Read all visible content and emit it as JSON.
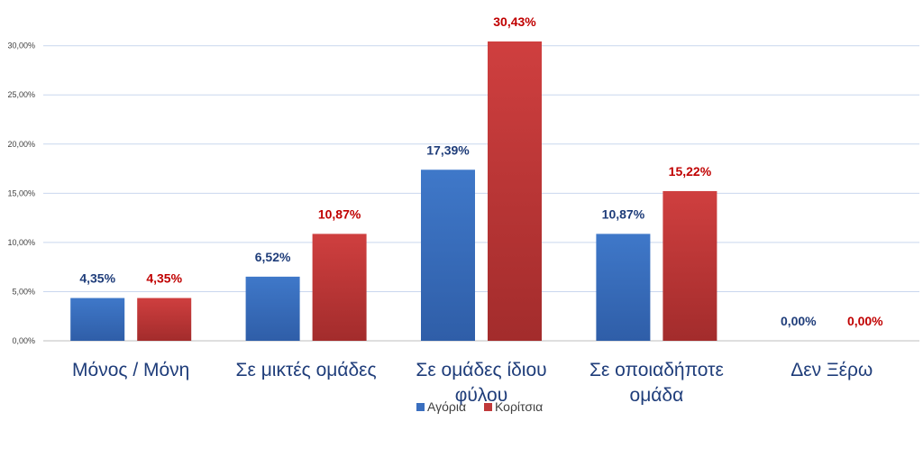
{
  "chart_data": {
    "type": "bar",
    "categories": [
      [
        "Μόνος / Μόνη"
      ],
      [
        "Σε μικτές ομάδες"
      ],
      [
        "Σε ομάδες ίδιου",
        "φύλου"
      ],
      [
        "Σε οποιαδήποτε",
        "ομάδα"
      ],
      [
        "Δεν Ξέρω"
      ]
    ],
    "series": [
      {
        "name": "Αγόρια",
        "color": "#3a6fbf",
        "label_color": "#1f3d7a",
        "values": [
          4.35,
          6.52,
          17.39,
          10.87,
          0.0
        ],
        "labels": [
          "4,35%",
          "6,52%",
          "17,39%",
          "10,87%",
          "0,00%"
        ]
      },
      {
        "name": "Κορίτσια",
        "color": "#c0393a",
        "label_color": "#c00000",
        "values": [
          4.35,
          10.87,
          30.43,
          15.22,
          0.0
        ],
        "labels": [
          "4,35%",
          "10,87%",
          "30,43%",
          "15,22%",
          "0,00%"
        ]
      }
    ],
    "yticks": [
      0,
      5,
      10,
      15,
      20,
      25,
      30
    ],
    "ytick_labels": [
      "0,00%",
      "5,00%",
      "10,00%",
      "15,00%",
      "20,00%",
      "25,00%",
      "30,00%"
    ],
    "ylim": [
      0,
      30.43
    ],
    "grid": true,
    "legend": "bottom-center",
    "title": "",
    "xlabel": "",
    "ylabel": ""
  }
}
